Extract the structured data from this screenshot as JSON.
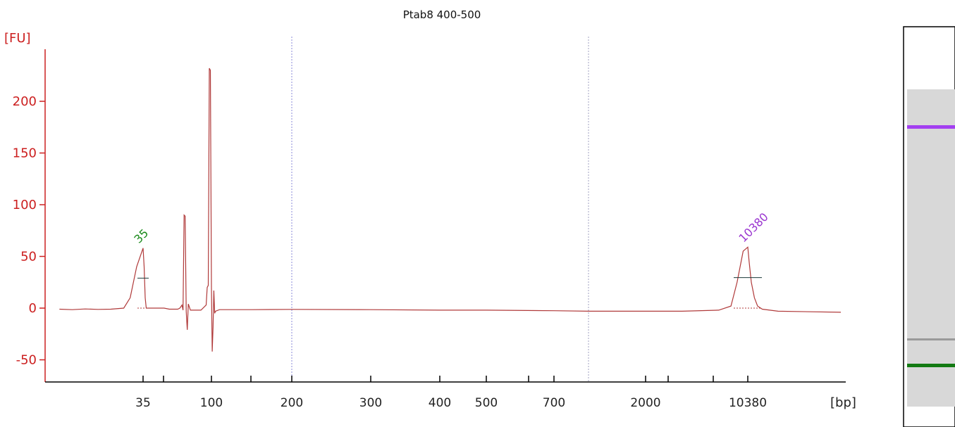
{
  "chart_data": {
    "type": "line",
    "title": "Ptab8 400-500",
    "ylabel": "[FU]",
    "xlabel": "[bp]",
    "ylim": [
      -70,
      250
    ],
    "y_ticks": [
      -50,
      0,
      50,
      100,
      150,
      200
    ],
    "x_tick_labels": [
      "35",
      "100",
      "200",
      "300",
      "400",
      "500",
      "700",
      "2000",
      "10380"
    ],
    "grid": false,
    "colors": {
      "axis": "#cc2020",
      "trace": "#b03a3a",
      "lower_marker": "#1a8a1a",
      "upper_marker": "#9a35d0",
      "vline": "#8a8ad8"
    },
    "peaks": [
      {
        "label": "35",
        "x_label": "35",
        "height": 58,
        "color": "#1a8a1a"
      },
      {
        "label": "10380",
        "x_label": "10380",
        "height": 59,
        "color": "#9a35d0"
      }
    ],
    "series": [
      {
        "values_description_note": "",
        "points": [
          [
            22,
            -1
          ],
          [
            24,
            -1.5
          ],
          [
            26,
            -0.8
          ],
          [
            28,
            -1.2
          ],
          [
            30,
            -1
          ],
          [
            32,
            0
          ],
          [
            33,
            10
          ],
          [
            34,
            40
          ],
          [
            35,
            58
          ],
          [
            36,
            40
          ],
          [
            37,
            10
          ],
          [
            38,
            0
          ],
          [
            40,
            0
          ],
          [
            55,
            0
          ],
          [
            60,
            -1
          ],
          [
            68,
            -1
          ],
          [
            70,
            0
          ],
          [
            72,
            3
          ],
          [
            73,
            -2
          ],
          [
            74,
            90
          ],
          [
            75,
            89
          ],
          [
            76,
            -3
          ],
          [
            77,
            -21
          ],
          [
            78,
            4
          ],
          [
            80,
            -2
          ],
          [
            90,
            -2
          ],
          [
            95,
            3
          ],
          [
            96,
            20
          ],
          [
            97,
            22
          ],
          [
            98,
            232
          ],
          [
            99,
            230
          ],
          [
            100,
            20
          ],
          [
            101,
            -42
          ],
          [
            102,
            -18
          ],
          [
            103,
            17
          ],
          [
            104,
            -5
          ],
          [
            105,
            -3
          ],
          [
            110,
            -1.5
          ],
          [
            150,
            -1.5
          ],
          [
            200,
            -1.2
          ],
          [
            300,
            -1.5
          ],
          [
            400,
            -2
          ],
          [
            500,
            -2
          ],
          [
            700,
            -2.5
          ],
          [
            1000,
            -3
          ],
          [
            2000,
            -3
          ],
          [
            5000,
            -3
          ],
          [
            8000,
            -2
          ],
          [
            9000,
            2
          ],
          [
            9500,
            25
          ],
          [
            10000,
            55
          ],
          [
            10380,
            59
          ],
          [
            10800,
            45
          ],
          [
            11500,
            25
          ],
          [
            12500,
            10
          ],
          [
            13500,
            2
          ],
          [
            15000,
            -1
          ],
          [
            20000,
            -3
          ],
          [
            40000,
            -4
          ]
        ]
      }
    ]
  },
  "gel": {
    "bands": [
      {
        "name": "upper-marker",
        "color": "#a33ff0"
      },
      {
        "name": "sample-band",
        "color": "#9a9a9a"
      },
      {
        "name": "lower-marker",
        "color": "#137a13"
      }
    ]
  }
}
